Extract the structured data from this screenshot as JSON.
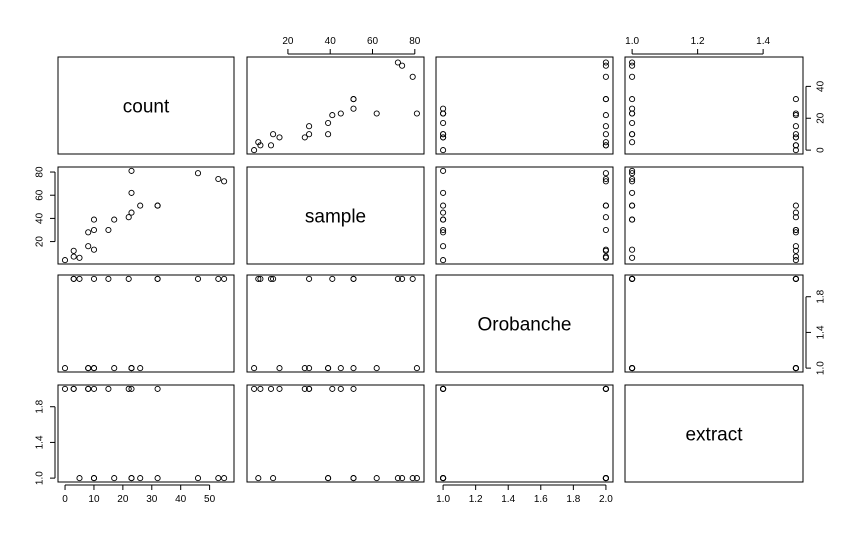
{
  "chart_data": {
    "type": "scatter",
    "variables": [
      "count",
      "sample",
      "Orobanche",
      "extract"
    ],
    "ranges": {
      "count": [
        0,
        56
      ],
      "sample": [
        4,
        81
      ],
      "Orobanche": [
        1,
        2
      ],
      "extract": [
        1,
        2
      ]
    },
    "ticks": {
      "count": [
        0,
        10,
        20,
        30,
        40,
        50
      ],
      "sample": [
        20,
        40,
        60,
        80
      ],
      "Orobanche": [
        1.0,
        1.2,
        1.4,
        1.6,
        1.8,
        2.0
      ],
      "extract": [
        1.0,
        1.4,
        1.8
      ]
    },
    "tick_labels": {
      "count_bottom": [
        "0",
        "10",
        "20",
        "30",
        "40",
        "50"
      ],
      "count_right": [
        "0",
        "20",
        "40"
      ],
      "sample_top": [
        "20",
        "40",
        "60",
        "80"
      ],
      "sample_left": [
        "20",
        "40",
        "60",
        "80"
      ],
      "Orobanche_bottom": [
        "1.0",
        "1.2",
        "1.4",
        "1.6",
        "1.8",
        "2.0"
      ],
      "Orobanche_right": [
        "1.0",
        "1.4",
        "1.8"
      ],
      "extract_top": [
        "1.0",
        "1.2",
        "1.4",
        "1.6",
        "1.8",
        "2.0"
      ],
      "extract_left": [
        "1.0",
        "1.4",
        "1.8"
      ]
    },
    "observations": {
      "count": [
        10,
        23,
        23,
        26,
        17,
        5,
        53,
        55,
        32,
        46,
        10,
        8,
        10,
        8,
        23,
        0,
        3,
        22,
        15,
        32,
        3
      ],
      "sample": [
        39,
        62,
        81,
        51,
        39,
        6,
        74,
        72,
        51,
        79,
        13,
        16,
        30,
        28,
        45,
        4,
        12,
        41,
        30,
        51,
        7
      ],
      "Orobanche": [
        1,
        1,
        1,
        1,
        1,
        2,
        2,
        2,
        2,
        2,
        2,
        1,
        1,
        1,
        1,
        1,
        2,
        2,
        2,
        2,
        2
      ],
      "extract": [
        1,
        1,
        1,
        1,
        1,
        1,
        1,
        1,
        1,
        1,
        1,
        2,
        2,
        2,
        2,
        2,
        2,
        2,
        2,
        2,
        2
      ]
    }
  }
}
